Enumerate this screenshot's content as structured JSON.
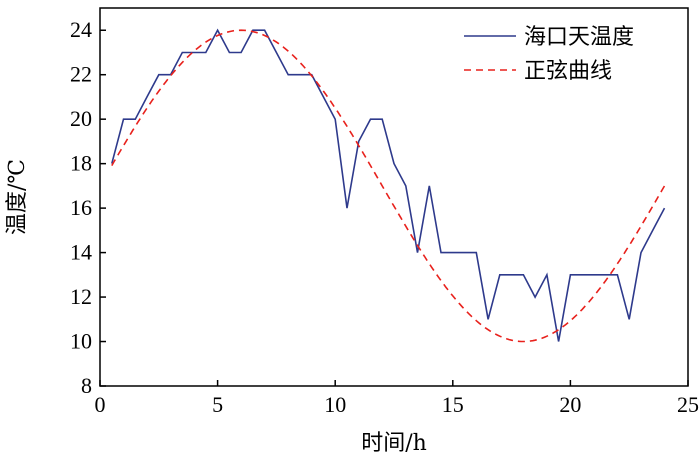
{
  "chart_data": {
    "type": "line",
    "xlabel": "时间/h",
    "ylabel": "温度/℃",
    "xlim": [
      0,
      25
    ],
    "ylim": [
      8,
      25
    ],
    "xticks": [
      0,
      5,
      10,
      15,
      20,
      25
    ],
    "yticks": [
      8,
      10,
      12,
      14,
      16,
      18,
      20,
      22,
      24
    ],
    "grid": false,
    "legend_position": "top-right",
    "series": [
      {
        "name": "海口天温度",
        "color": "#2e3a8c",
        "style": "solid",
        "x": [
          0.5,
          1,
          1.5,
          2,
          2.5,
          3,
          3.5,
          4,
          4.5,
          5,
          5.5,
          6,
          6.5,
          7,
          7.5,
          8,
          8.5,
          9,
          9.5,
          10,
          10.5,
          11,
          11.5,
          12,
          12.5,
          13,
          13.5,
          14,
          14.5,
          15,
          15.5,
          16,
          16.5,
          17,
          17.5,
          18,
          18.5,
          19,
          19.5,
          20,
          20.5,
          21,
          21.5,
          22,
          22.5,
          23,
          23.5,
          24
        ],
        "values": [
          18,
          20,
          20,
          21,
          22,
          22,
          23,
          23,
          23,
          24,
          23,
          23,
          24,
          24,
          23,
          22,
          22,
          22,
          21,
          20,
          16,
          19,
          20,
          20,
          18,
          17,
          14,
          17,
          14,
          14,
          14,
          14,
          11,
          13,
          13,
          13,
          12,
          13,
          10,
          13,
          13,
          13,
          13,
          13,
          11,
          14,
          15,
          16
        ]
      },
      {
        "name": "正弦曲线",
        "color": "#e8211c",
        "style": "dashed",
        "function": {
          "mean": 17,
          "amplitude": 7,
          "period": 24,
          "peak_x": 6
        },
        "x_range": [
          0.5,
          24
        ]
      }
    ]
  }
}
